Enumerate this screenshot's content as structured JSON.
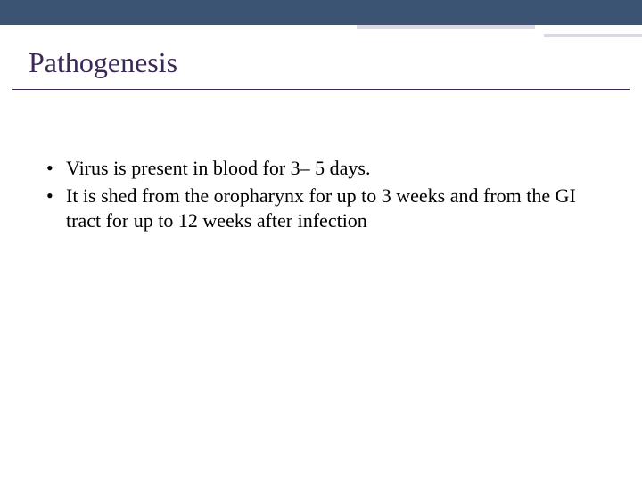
{
  "slide": {
    "title": "Pathogenesis",
    "bullets": [
      " Virus is present in blood for 3– 5 days.",
      "It is shed from the oropharynx for up to 3 weeks and from the GI tract for up to 12 weeks after infection"
    ]
  },
  "styling": {
    "top_bar_color": "#3b5474",
    "accent_line_color": "#d9dbe4",
    "title_color": "#3c2857",
    "title_fontsize": 32,
    "body_fontsize": 22,
    "body_color": "#000000",
    "background_color": "#ffffff",
    "font_family": "Georgia, Times New Roman, serif"
  }
}
